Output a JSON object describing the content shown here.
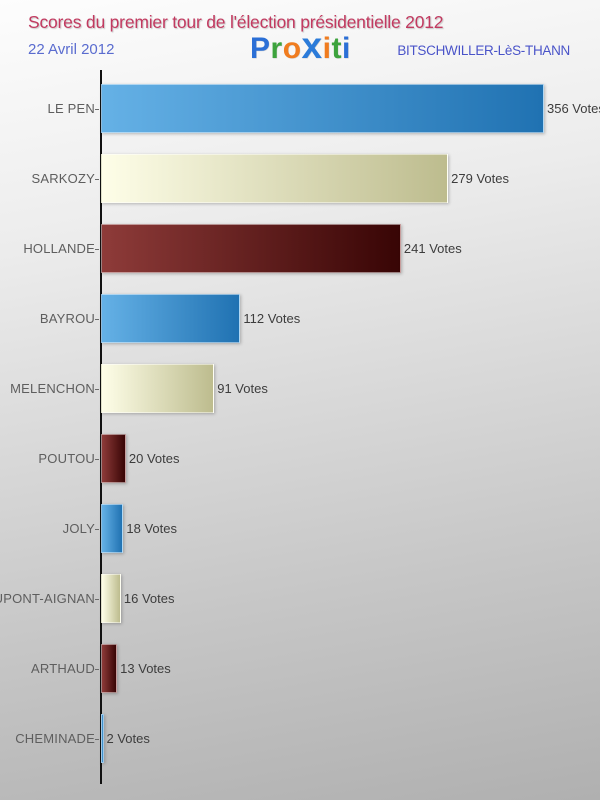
{
  "header": {
    "title": "Scores du premier tour de l'élection présidentielle 2012",
    "date": "22 Avril 2012",
    "location": "BITSCHWILLER-LèS-THANN",
    "logo_letters": [
      {
        "ch": "P",
        "color": "#2b6fd6",
        "big": false
      },
      {
        "ch": "r",
        "color": "#3da33d",
        "big": false
      },
      {
        "ch": "o",
        "color": "#f07c1f",
        "big": false
      },
      {
        "ch": "x",
        "color": "#2b7bd9",
        "big": true
      },
      {
        "ch": "i",
        "color": "#f07c1f",
        "big": false
      },
      {
        "ch": "t",
        "color": "#3da33d",
        "big": false
      },
      {
        "ch": "i",
        "color": "#2b6fd6",
        "big": false
      }
    ]
  },
  "chart_data": {
    "type": "bar",
    "orientation": "horizontal",
    "title": "Scores du premier tour de l'élection présidentielle 2012",
    "subtitle": "22 Avril 2012 — BITSCHWILLER-LèS-THANN",
    "categories": [
      "LE PEN",
      "SARKOZY",
      "HOLLANDE",
      "BAYROU",
      "MELENCHON",
      "POUTOU",
      "JOLY",
      "DUPONT-AIGNAN",
      "ARTHAUD",
      "CHEMINADE"
    ],
    "values": [
      356,
      279,
      241,
      112,
      91,
      20,
      18,
      16,
      13,
      2
    ],
    "value_suffix": " Votes",
    "xlim": [
      0,
      356
    ],
    "grid": false,
    "legend": null,
    "colorway_sequence": [
      "blue",
      "cream",
      "maroon"
    ],
    "colorways": {
      "blue": {
        "from": "#65b1e6",
        "to": "#2072b2"
      },
      "cream": {
        "from": "#fefee8",
        "to": "#bdbc8e"
      },
      "maroon": {
        "from": "#8e3b39",
        "to": "#380505"
      }
    }
  },
  "colors": {
    "title": "#c23a60",
    "date": "#5a6ccf",
    "location": "#4953c8",
    "category_label": "#5e5e5e",
    "value_label": "#3d3d3d",
    "axis": "#111111"
  }
}
